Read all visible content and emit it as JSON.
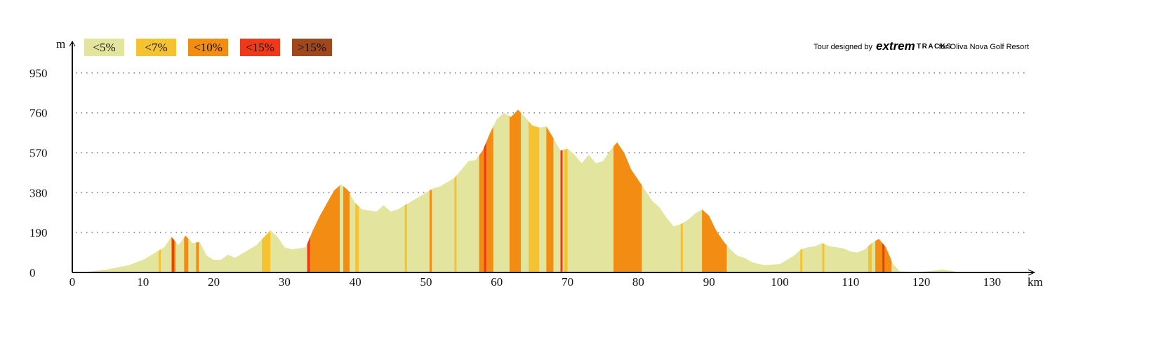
{
  "chart_data": {
    "type": "area",
    "y_label": "m",
    "x_label": "km",
    "credit": {
      "prefix": "Tour designed by",
      "brand": "extrem",
      "brand2": "TRACKS",
      "suffix": "for Oliva Nova Golf Resort"
    },
    "xlim": [
      0,
      136
    ],
    "ylim": [
      0,
      1100
    ],
    "xticks": [
      0,
      10,
      20,
      30,
      40,
      50,
      60,
      70,
      80,
      90,
      100,
      110,
      120,
      130
    ],
    "yticks": [
      0,
      190,
      380,
      570,
      760,
      950
    ],
    "grid": true,
    "legend": [
      {
        "name": "<5%",
        "color": "#e3e49e"
      },
      {
        "name": "<7%",
        "color": "#f5c232"
      },
      {
        "name": "<10%",
        "color": "#f28c12"
      },
      {
        "name": "<15%",
        "color": "#ee3a1b"
      },
      {
        "name": ">15%",
        "color": "#a0471e"
      }
    ],
    "x": [
      0,
      2,
      5,
      8,
      10,
      12,
      13,
      14,
      15,
      16,
      17,
      18,
      19,
      20,
      21,
      22,
      23,
      24,
      26,
      28,
      29,
      30,
      31,
      33,
      34,
      35,
      36,
      37,
      38,
      39,
      40,
      41,
      42,
      43,
      44,
      45,
      46,
      47,
      48,
      49,
      50,
      51,
      52,
      53,
      54,
      55,
      56,
      57,
      58,
      59,
      60,
      61,
      62,
      63,
      64,
      65,
      66,
      67,
      68,
      69,
      70,
      71,
      72,
      73,
      74,
      75,
      76,
      77,
      78,
      79,
      80,
      81,
      82,
      83,
      84,
      85,
      86,
      87,
      88,
      89,
      90,
      91,
      92,
      93,
      94,
      95,
      96,
      97,
      98,
      100,
      101,
      102,
      103,
      104,
      105,
      106,
      107,
      108,
      109,
      110,
      111,
      112,
      113,
      114,
      115,
      116,
      117,
      120,
      122,
      123,
      125,
      133
    ],
    "values": [
      0,
      3,
      15,
      35,
      60,
      100,
      120,
      170,
      130,
      175,
      140,
      145,
      80,
      60,
      60,
      85,
      70,
      90,
      130,
      200,
      170,
      120,
      110,
      120,
      200,
      270,
      330,
      390,
      420,
      390,
      330,
      300,
      295,
      290,
      320,
      290,
      300,
      320,
      340,
      360,
      380,
      400,
      410,
      430,
      450,
      490,
      530,
      535,
      580,
      660,
      730,
      760,
      740,
      775,
      740,
      700,
      690,
      695,
      640,
      580,
      590,
      560,
      520,
      560,
      520,
      530,
      580,
      620,
      570,
      490,
      440,
      390,
      340,
      310,
      260,
      220,
      230,
      250,
      280,
      300,
      270,
      200,
      150,
      110,
      80,
      70,
      50,
      40,
      35,
      40,
      60,
      80,
      110,
      120,
      125,
      140,
      125,
      120,
      115,
      100,
      95,
      110,
      140,
      160,
      120,
      40,
      5,
      3,
      10,
      15,
      3,
      0
    ],
    "steep": [
      {
        "grade": 1,
        "x": [
          12.2,
          12.5
        ]
      },
      {
        "grade": 1,
        "x": [
          26.8,
          28
        ]
      },
      {
        "grade": 1,
        "x": [
          40,
          40.5
        ]
      },
      {
        "grade": 1,
        "x": [
          47,
          47.3
        ]
      },
      {
        "grade": 1,
        "x": [
          54,
          54.3
        ]
      },
      {
        "grade": 1,
        "x": [
          64.5,
          66
        ]
      },
      {
        "grade": 1,
        "x": [
          69.5,
          70
        ]
      },
      {
        "grade": 1,
        "x": [
          86,
          86.3
        ]
      },
      {
        "grade": 1,
        "x": [
          102.9,
          103.2
        ]
      },
      {
        "grade": 1,
        "x": [
          106,
          106.3
        ]
      },
      {
        "grade": 1,
        "x": [
          112.5,
          113
        ]
      },
      {
        "grade": 2,
        "x": [
          14,
          14.6
        ]
      },
      {
        "grade": 2,
        "x": [
          15.8,
          16.4
        ]
      },
      {
        "grade": 2,
        "x": [
          17.5,
          17.9
        ]
      },
      {
        "grade": 2,
        "x": [
          33.4,
          37.8
        ]
      },
      {
        "grade": 2,
        "x": [
          38.3,
          39.2
        ]
      },
      {
        "grade": 2,
        "x": [
          50.5,
          50.8
        ]
      },
      {
        "grade": 2,
        "x": [
          57.5,
          59.5
        ]
      },
      {
        "grade": 2,
        "x": [
          61.8,
          63.4
        ]
      },
      {
        "grade": 2,
        "x": [
          67,
          68
        ]
      },
      {
        "grade": 2,
        "x": [
          76.5,
          80.5
        ]
      },
      {
        "grade": 2,
        "x": [
          89,
          92.5
        ]
      },
      {
        "grade": 2,
        "x": [
          113.5,
          115.8
        ]
      },
      {
        "grade": 3,
        "x": [
          14.1,
          14.4
        ]
      },
      {
        "grade": 3,
        "x": [
          33.2,
          33.6
        ]
      },
      {
        "grade": 3,
        "x": [
          58.2,
          58.5
        ]
      },
      {
        "grade": 3,
        "x": [
          69,
          69.3
        ]
      },
      {
        "grade": 3,
        "x": [
          114.5,
          114.8
        ]
      }
    ]
  }
}
